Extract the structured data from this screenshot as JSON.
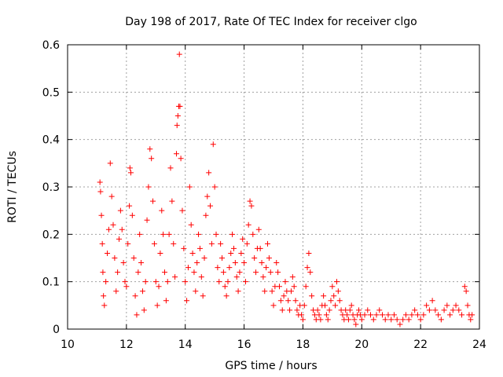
{
  "chart_data": {
    "type": "scatter",
    "title": "Day 198 of 2017, Rate Of TEC Index for receiver clgo",
    "xlabel": "GPS time / hours",
    "ylabel": "ROTI / TECUs",
    "xlim": [
      10,
      24
    ],
    "ylim": [
      0,
      0.6
    ],
    "x_ticks": [
      10,
      12,
      14,
      16,
      18,
      20,
      22,
      24
    ],
    "y_ticks": [
      0,
      0.1,
      0.2,
      0.3,
      0.4,
      0.5,
      0.6
    ],
    "x_tick_labels": [
      "10",
      "12",
      "14",
      "16",
      "18",
      "20",
      "22",
      "24"
    ],
    "y_tick_labels": [
      "0",
      "0.1",
      "0.2",
      "0.3",
      "0.4",
      "0.5",
      "0.6"
    ],
    "grid": true,
    "marker": "+",
    "color": "#ff0000",
    "series": [
      {
        "points": [
          [
            11.1,
            0.31
          ],
          [
            11.12,
            0.29
          ],
          [
            11.15,
            0.24
          ],
          [
            11.18,
            0.18
          ],
          [
            11.2,
            0.12
          ],
          [
            11.22,
            0.07
          ],
          [
            11.25,
            0.05
          ],
          [
            11.3,
            0.1
          ],
          [
            11.35,
            0.16
          ],
          [
            11.4,
            0.21
          ],
          [
            11.45,
            0.35
          ],
          [
            11.5,
            0.28
          ],
          [
            11.55,
            0.22
          ],
          [
            11.6,
            0.15
          ],
          [
            11.65,
            0.08
          ],
          [
            11.7,
            0.12
          ],
          [
            11.75,
            0.19
          ],
          [
            11.8,
            0.25
          ],
          [
            11.85,
            0.21
          ],
          [
            11.9,
            0.14
          ],
          [
            11.95,
            0.1
          ],
          [
            12.0,
            0.09
          ],
          [
            12.05,
            0.18
          ],
          [
            12.1,
            0.26
          ],
          [
            12.12,
            0.34
          ],
          [
            12.15,
            0.33
          ],
          [
            12.2,
            0.24
          ],
          [
            12.25,
            0.15
          ],
          [
            12.3,
            0.07
          ],
          [
            12.35,
            0.03
          ],
          [
            12.4,
            0.12
          ],
          [
            12.45,
            0.2
          ],
          [
            12.5,
            0.14
          ],
          [
            12.55,
            0.08
          ],
          [
            12.6,
            0.04
          ],
          [
            12.65,
            0.1
          ],
          [
            12.7,
            0.23
          ],
          [
            12.75,
            0.3
          ],
          [
            12.8,
            0.38
          ],
          [
            12.85,
            0.36
          ],
          [
            12.9,
            0.27
          ],
          [
            12.95,
            0.18
          ],
          [
            13.0,
            0.1
          ],
          [
            13.05,
            0.05
          ],
          [
            13.1,
            0.09
          ],
          [
            13.15,
            0.16
          ],
          [
            13.2,
            0.25
          ],
          [
            13.25,
            0.2
          ],
          [
            13.3,
            0.12
          ],
          [
            13.35,
            0.06
          ],
          [
            13.4,
            0.1
          ],
          [
            13.45,
            0.2
          ],
          [
            13.5,
            0.34
          ],
          [
            13.55,
            0.27
          ],
          [
            13.6,
            0.18
          ],
          [
            13.65,
            0.11
          ],
          [
            13.7,
            0.37
          ],
          [
            13.72,
            0.43
          ],
          [
            13.75,
            0.45
          ],
          [
            13.78,
            0.47
          ],
          [
            13.8,
            0.58
          ],
          [
            13.82,
            0.47
          ],
          [
            13.85,
            0.36
          ],
          [
            13.9,
            0.25
          ],
          [
            13.95,
            0.17
          ],
          [
            14.0,
            0.1
          ],
          [
            14.05,
            0.06
          ],
          [
            14.1,
            0.13
          ],
          [
            14.15,
            0.3
          ],
          [
            14.2,
            0.22
          ],
          [
            14.25,
            0.16
          ],
          [
            14.3,
            0.12
          ],
          [
            14.35,
            0.08
          ],
          [
            14.4,
            0.14
          ],
          [
            14.45,
            0.2
          ],
          [
            14.5,
            0.17
          ],
          [
            14.55,
            0.11
          ],
          [
            14.6,
            0.07
          ],
          [
            14.65,
            0.15
          ],
          [
            14.7,
            0.24
          ],
          [
            14.75,
            0.28
          ],
          [
            14.8,
            0.33
          ],
          [
            14.85,
            0.26
          ],
          [
            14.9,
            0.18
          ],
          [
            14.95,
            0.39
          ],
          [
            15.0,
            0.3
          ],
          [
            15.05,
            0.2
          ],
          [
            15.1,
            0.13
          ],
          [
            15.15,
            0.1
          ],
          [
            15.2,
            0.18
          ],
          [
            15.25,
            0.15
          ],
          [
            15.3,
            0.12
          ],
          [
            15.35,
            0.09
          ],
          [
            15.4,
            0.07
          ],
          [
            15.45,
            0.1
          ],
          [
            15.5,
            0.13
          ],
          [
            15.55,
            0.16
          ],
          [
            15.6,
            0.2
          ],
          [
            15.65,
            0.17
          ],
          [
            15.7,
            0.14
          ],
          [
            15.75,
            0.11
          ],
          [
            15.8,
            0.08
          ],
          [
            15.85,
            0.12
          ],
          [
            15.9,
            0.16
          ],
          [
            15.95,
            0.19
          ],
          [
            16.0,
            0.14
          ],
          [
            16.05,
            0.1
          ],
          [
            16.1,
            0.18
          ],
          [
            16.15,
            0.22
          ],
          [
            16.2,
            0.27
          ],
          [
            16.25,
            0.26
          ],
          [
            16.3,
            0.2
          ],
          [
            16.35,
            0.15
          ],
          [
            16.4,
            0.12
          ],
          [
            16.45,
            0.17
          ],
          [
            16.5,
            0.21
          ],
          [
            16.55,
            0.17
          ],
          [
            16.6,
            0.14
          ],
          [
            16.65,
            0.11
          ],
          [
            16.7,
            0.08
          ],
          [
            16.75,
            0.13
          ],
          [
            16.8,
            0.18
          ],
          [
            16.85,
            0.15
          ],
          [
            16.9,
            0.12
          ],
          [
            16.95,
            0.08
          ],
          [
            17.0,
            0.05
          ],
          [
            17.05,
            0.09
          ],
          [
            17.1,
            0.14
          ],
          [
            17.15,
            0.12
          ],
          [
            17.2,
            0.09
          ],
          [
            17.25,
            0.06
          ],
          [
            17.3,
            0.04
          ],
          [
            17.35,
            0.07
          ],
          [
            17.4,
            0.1
          ],
          [
            17.45,
            0.08
          ],
          [
            17.5,
            0.06
          ],
          [
            17.55,
            0.04
          ],
          [
            17.6,
            0.08
          ],
          [
            17.65,
            0.11
          ],
          [
            17.7,
            0.09
          ],
          [
            17.75,
            0.06
          ],
          [
            17.8,
            0.04
          ],
          [
            17.85,
            0.03
          ],
          [
            17.9,
            0.05
          ],
          [
            17.95,
            0.03
          ],
          [
            18.0,
            0.02
          ],
          [
            18.05,
            0.05
          ],
          [
            18.1,
            0.09
          ],
          [
            18.15,
            0.13
          ],
          [
            18.2,
            0.16
          ],
          [
            18.25,
            0.12
          ],
          [
            18.3,
            0.07
          ],
          [
            18.35,
            0.04
          ],
          [
            18.4,
            0.03
          ],
          [
            18.45,
            0.02
          ],
          [
            18.5,
            0.04
          ],
          [
            18.55,
            0.03
          ],
          [
            18.6,
            0.02
          ],
          [
            18.65,
            0.05
          ],
          [
            18.7,
            0.07
          ],
          [
            18.75,
            0.05
          ],
          [
            18.8,
            0.03
          ],
          [
            18.85,
            0.02
          ],
          [
            18.9,
            0.04
          ],
          [
            18.95,
            0.06
          ],
          [
            19.0,
            0.09
          ],
          [
            19.05,
            0.07
          ],
          [
            19.1,
            0.05
          ],
          [
            19.15,
            0.1
          ],
          [
            19.2,
            0.08
          ],
          [
            19.25,
            0.06
          ],
          [
            19.3,
            0.04
          ],
          [
            19.35,
            0.03
          ],
          [
            19.4,
            0.02
          ],
          [
            19.45,
            0.04
          ],
          [
            19.5,
            0.03
          ],
          [
            19.55,
            0.02
          ],
          [
            19.6,
            0.04
          ],
          [
            19.65,
            0.05
          ],
          [
            19.7,
            0.03
          ],
          [
            19.75,
            0.02
          ],
          [
            19.8,
            0.01
          ],
          [
            19.85,
            0.03
          ],
          [
            19.9,
            0.04
          ],
          [
            19.95,
            0.03
          ],
          [
            20.0,
            0.02
          ],
          [
            20.1,
            0.03
          ],
          [
            20.2,
            0.04
          ],
          [
            20.3,
            0.03
          ],
          [
            20.4,
            0.02
          ],
          [
            20.5,
            0.03
          ],
          [
            20.6,
            0.04
          ],
          [
            20.7,
            0.03
          ],
          [
            20.8,
            0.02
          ],
          [
            20.9,
            0.03
          ],
          [
            21.0,
            0.02
          ],
          [
            21.1,
            0.03
          ],
          [
            21.2,
            0.02
          ],
          [
            21.3,
            0.01
          ],
          [
            21.4,
            0.02
          ],
          [
            21.5,
            0.03
          ],
          [
            21.6,
            0.02
          ],
          [
            21.7,
            0.03
          ],
          [
            21.8,
            0.04
          ],
          [
            21.9,
            0.03
          ],
          [
            22.0,
            0.02
          ],
          [
            22.1,
            0.03
          ],
          [
            22.2,
            0.05
          ],
          [
            22.3,
            0.04
          ],
          [
            22.4,
            0.06
          ],
          [
            22.5,
            0.04
          ],
          [
            22.6,
            0.03
          ],
          [
            22.7,
            0.02
          ],
          [
            22.8,
            0.04
          ],
          [
            22.9,
            0.05
          ],
          [
            23.0,
            0.03
          ],
          [
            23.1,
            0.04
          ],
          [
            23.2,
            0.05
          ],
          [
            23.3,
            0.04
          ],
          [
            23.4,
            0.03
          ],
          [
            23.5,
            0.09
          ],
          [
            23.55,
            0.08
          ],
          [
            23.6,
            0.05
          ],
          [
            23.65,
            0.03
          ],
          [
            23.7,
            0.02
          ],
          [
            23.75,
            0.03
          ]
        ]
      }
    ]
  }
}
